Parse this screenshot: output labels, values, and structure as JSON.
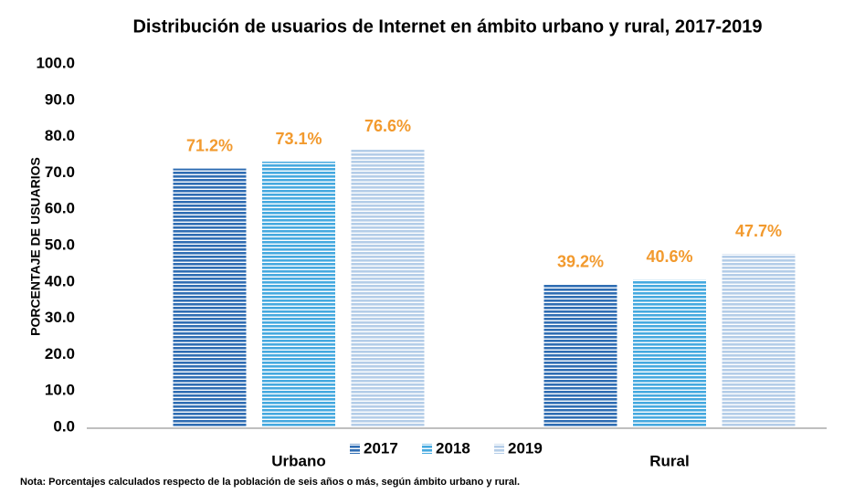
{
  "chart_data": {
    "type": "bar",
    "title": "Distribución de usuarios de Internet en ámbito urbano y rural, 2017-2019",
    "y_label": "PORCENTAJE DE USUARIOS",
    "note": "Nota: Porcentajes calculados respecto de la población de seis años o más, según ámbito urbano y rural.",
    "categories": [
      "Urbano",
      "Rural"
    ],
    "series": [
      {
        "name": "2017",
        "color": "#2f6db3",
        "values": [
          71.2,
          39.2
        ],
        "value_labels": [
          "71.2%",
          "39.2%"
        ]
      },
      {
        "name": "2018",
        "color": "#45a9df",
        "values": [
          73.1,
          40.6
        ],
        "value_labels": [
          "73.1%",
          "40.6%"
        ]
      },
      {
        "name": "2019",
        "color": "#b4cde8",
        "values": [
          76.6,
          47.7
        ],
        "value_labels": [
          "76.6%",
          "47.7%"
        ]
      }
    ],
    "value_label_color": "#f29a2e",
    "ylim": [
      0,
      100
    ],
    "yticks": [
      {
        "value": 0,
        "label": "0.0"
      },
      {
        "value": 10,
        "label": "10.0"
      },
      {
        "value": 20,
        "label": "20.0"
      },
      {
        "value": 30,
        "label": "30.0"
      },
      {
        "value": 40,
        "label": "40.0"
      },
      {
        "value": 50,
        "label": "50.0"
      },
      {
        "value": 60,
        "label": "60.0"
      },
      {
        "value": 70,
        "label": "70.0"
      },
      {
        "value": 80,
        "label": "80.0"
      },
      {
        "value": 90,
        "label": "90.0"
      },
      {
        "value": 100,
        "label": "100.0"
      }
    ],
    "grid": false
  }
}
